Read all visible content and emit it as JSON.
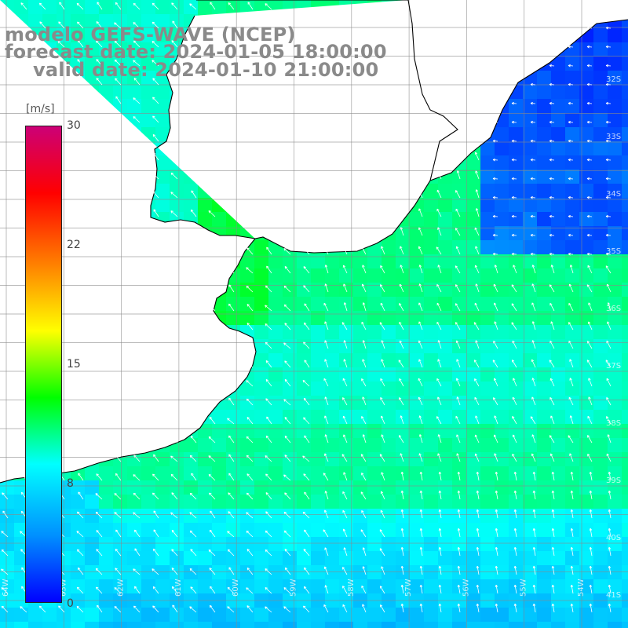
{
  "title": {
    "model": "modelo GEFS-WAVE (NCEP)",
    "forecast": "forecast date: 2024-01-05 18:00:00",
    "valid": "valid date: 2024-01-10 21:00:00"
  },
  "colorbar": {
    "unit": "[m/s]",
    "ticks": [
      "30",
      "22",
      "15",
      "8",
      "0"
    ],
    "colors": [
      "#0000ff",
      "#0090ff",
      "#00ffff",
      "#00ff00",
      "#ffff00",
      "#ff8000",
      "#ff0000",
      "#cc0077"
    ]
  },
  "lat_labels": [
    "32S",
    "33S",
    "34S",
    "35S",
    "36S",
    "37S",
    "38S",
    "39S",
    "40S",
    "41S"
  ],
  "lon_labels": [
    "64W",
    "63W",
    "62W",
    "61W",
    "60W",
    "59W",
    "58W",
    "57W",
    "56W",
    "55W",
    "54W"
  ],
  "colors": {
    "land": "#ffffff",
    "grid": "#8a8a8a",
    "coast": "#000000",
    "arrow": "#ffffff"
  }
}
